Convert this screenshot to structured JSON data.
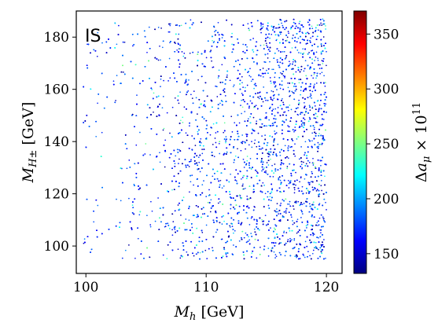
{
  "chart_data": {
    "type": "scatter",
    "title": "",
    "tag": "IS",
    "xlabel": "M_h [GeV]",
    "ylabel": "M_{H±} [GeV]",
    "colorbar_label": "Δa_μ × 10^11",
    "xlim": [
      99.2,
      121.3
    ],
    "ylim": [
      89.5,
      190
    ],
    "clim": [
      132,
      371
    ],
    "x_ticks": [
      100,
      110,
      120
    ],
    "y_ticks": [
      100,
      120,
      140,
      160,
      180
    ],
    "colorbar_ticks": [
      150,
      200,
      250,
      300,
      350
    ],
    "colormap": "jet",
    "grid": false,
    "point_distribution": {
      "description_values": "dense cloud of points for M_h between ~100 and 120 GeV and M_H± between ~95 and 187 GeV; density increases with M_h; most points have Δa_μ × 10^11 between ~150 and 230",
      "x_range": [
        99.8,
        120.0
      ],
      "y_range": [
        95,
        187
      ],
      "c_range": [
        140,
        250
      ],
      "dominant_c": 175,
      "count": 9000
    }
  }
}
